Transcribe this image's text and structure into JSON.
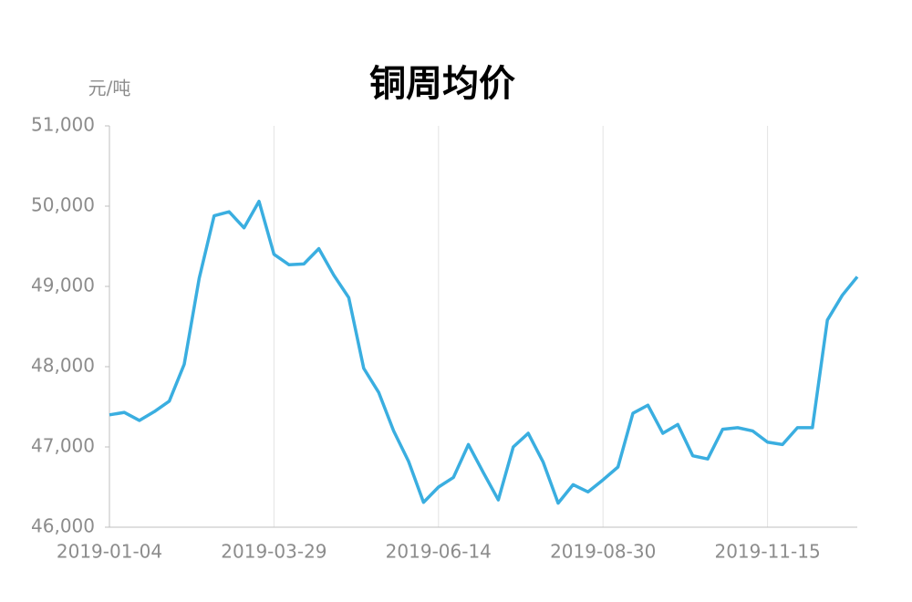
{
  "chart_data": {
    "type": "line",
    "title": "铜周均价",
    "y_label": "元/吨",
    "categories": [
      "2019-01-04",
      null,
      null,
      null,
      null,
      null,
      null,
      null,
      null,
      null,
      null,
      "2019-03-29",
      null,
      null,
      null,
      null,
      null,
      null,
      null,
      null,
      null,
      null,
      "2019-06-14",
      null,
      null,
      null,
      null,
      null,
      null,
      null,
      null,
      null,
      null,
      "2019-08-30",
      null,
      null,
      null,
      null,
      null,
      null,
      null,
      null,
      null,
      null,
      "2019-11-15",
      null,
      null,
      null,
      null,
      null,
      null
    ],
    "series": [
      {
        "name": "铜周均价",
        "color": "#3aaee0",
        "values": [
          47400,
          47430,
          47330,
          47440,
          47570,
          48030,
          49100,
          49880,
          49930,
          49730,
          50060,
          49400,
          49270,
          49280,
          49470,
          49140,
          48860,
          47980,
          47680,
          47200,
          46820,
          46310,
          46500,
          46620,
          47030,
          46680,
          46340,
          47000,
          47170,
          46810,
          46300,
          46530,
          46440,
          46590,
          46750,
          47420,
          47520,
          47170,
          47280,
          46890,
          46850,
          47220,
          47240,
          47200,
          47060,
          47030,
          47240,
          47240,
          48580,
          48890,
          49120
        ]
      }
    ],
    "ylim": [
      46000,
      51000
    ],
    "yticks": [
      {
        "value": 46000,
        "label": "46,000"
      },
      {
        "value": 47000,
        "label": "47,000"
      },
      {
        "value": 48000,
        "label": "48,000"
      },
      {
        "value": 49000,
        "label": "49,000"
      },
      {
        "value": 50000,
        "label": "50,000"
      },
      {
        "value": 51000,
        "label": "51,000"
      }
    ],
    "grid": true
  }
}
